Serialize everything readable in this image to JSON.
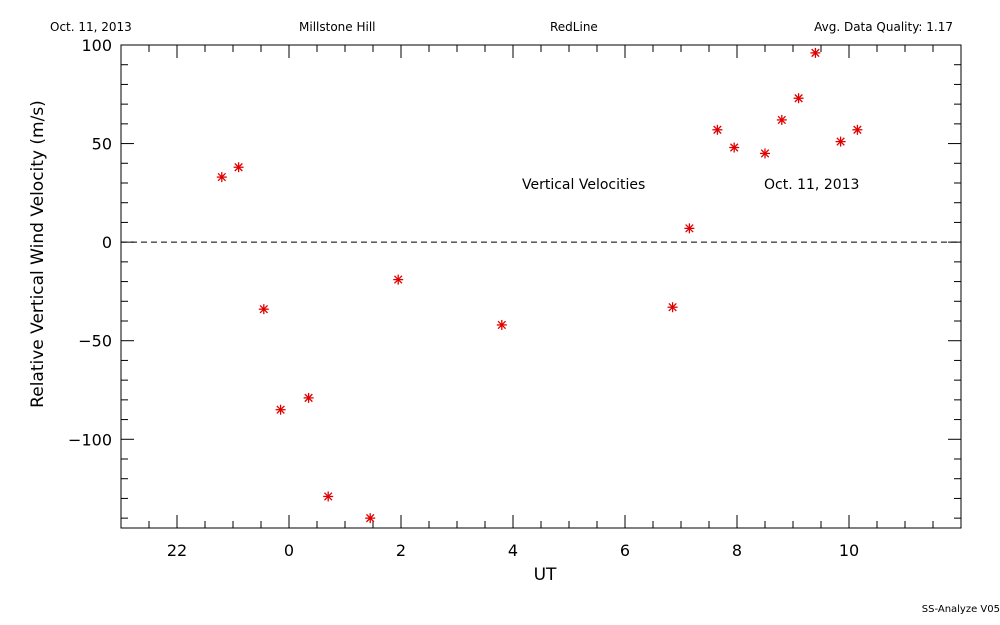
{
  "header": {
    "date": "Oct. 11, 2013",
    "site": "Millstone Hill",
    "instrument": "RedLine",
    "quality": "Avg. Data Quality: 1.17"
  },
  "footer": {
    "software": "SS-Analyze V05"
  },
  "chart_data": {
    "type": "scatter",
    "title": "",
    "xlabel": "UT",
    "ylabel": "Relative Vertical Wind Velocity  (m/s)",
    "xlim": [
      21,
      36
    ],
    "ylim": [
      -145,
      100
    ],
    "x_tick_values": [
      22,
      24,
      26,
      28,
      30,
      32,
      34
    ],
    "x_tick_labels": [
      "22",
      "0",
      "2",
      "4",
      "6",
      "8",
      "10"
    ],
    "y_tick_values": [
      -100,
      -50,
      0,
      50,
      100
    ],
    "y_tick_labels": [
      "−100",
      "−50",
      "0",
      "50",
      "100"
    ],
    "zero_line": "dashed",
    "grid": false,
    "marker": "asterisk",
    "marker_color": "#e00000",
    "annotations": [
      "Vertical Velocities",
      "Oct. 11, 2013"
    ],
    "series": [
      {
        "name": "",
        "x": [
          22.8,
          23.1,
          23.55,
          23.85,
          24.35,
          24.7,
          25.45,
          25.95,
          27.8,
          30.85,
          31.15,
          31.65,
          31.95,
          32.5,
          32.8,
          33.1,
          33.4,
          33.85,
          34.15
        ],
        "y": [
          33,
          38,
          -34,
          -85,
          -79,
          -129,
          -140,
          -19,
          -42,
          -33,
          7,
          57,
          48,
          45,
          62,
          73,
          96,
          51,
          57
        ]
      }
    ]
  }
}
